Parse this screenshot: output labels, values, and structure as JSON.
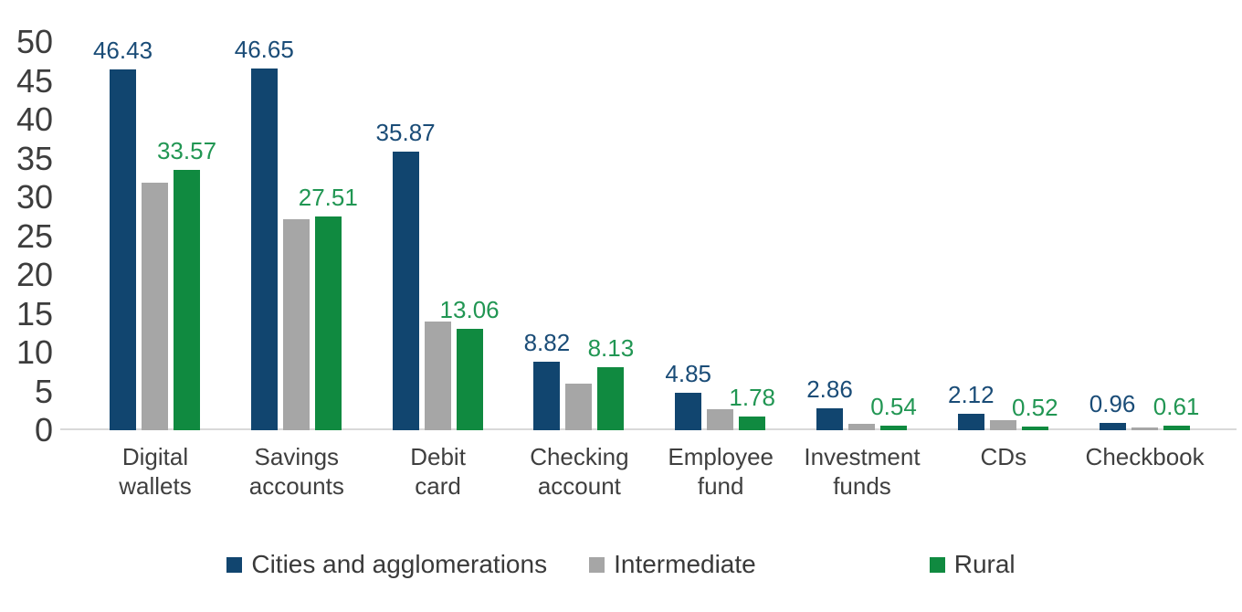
{
  "chart_data": {
    "type": "bar",
    "title": "",
    "xlabel": "",
    "ylabel": "",
    "categories": [
      "Digital wallets",
      "Savings accounts",
      "Debit card",
      "Checking account",
      "Employee fund",
      "Investment funds",
      "CDs",
      "Checkbook"
    ],
    "series": [
      {
        "name": "Cities and agglomerations",
        "key": "cities-and-agglomerations",
        "color": "#11456F",
        "label_color": "#1A4C77",
        "show_value_labels": true,
        "values": [
          46.43,
          46.65,
          35.87,
          8.82,
          4.85,
          2.86,
          2.12,
          0.96
        ]
      },
      {
        "name": "Intermediate",
        "key": "intermediate",
        "color": "#A6A6A6",
        "label_color": "#A6A6A6",
        "show_value_labels": false,
        "values_estimated_from_bar_heights": true,
        "values": [
          31.9,
          27.2,
          14.0,
          6.0,
          2.7,
          0.85,
          1.25,
          0.35
        ]
      },
      {
        "name": "Rural",
        "key": "rural",
        "color": "#108A40",
        "label_color": "#219653",
        "show_value_labels": true,
        "values": [
          33.57,
          27.51,
          13.06,
          8.13,
          1.78,
          0.54,
          0.52,
          0.61
        ]
      }
    ],
    "y_ticks": [
      0,
      5,
      10,
      15,
      20,
      25,
      30,
      35,
      40,
      45,
      50
    ],
    "ylim": [
      0,
      50
    ],
    "grid": false,
    "legend_position": "bottom",
    "axis_text_color": "#3D3D3D",
    "axis_line_color": "#D9D9D9"
  }
}
